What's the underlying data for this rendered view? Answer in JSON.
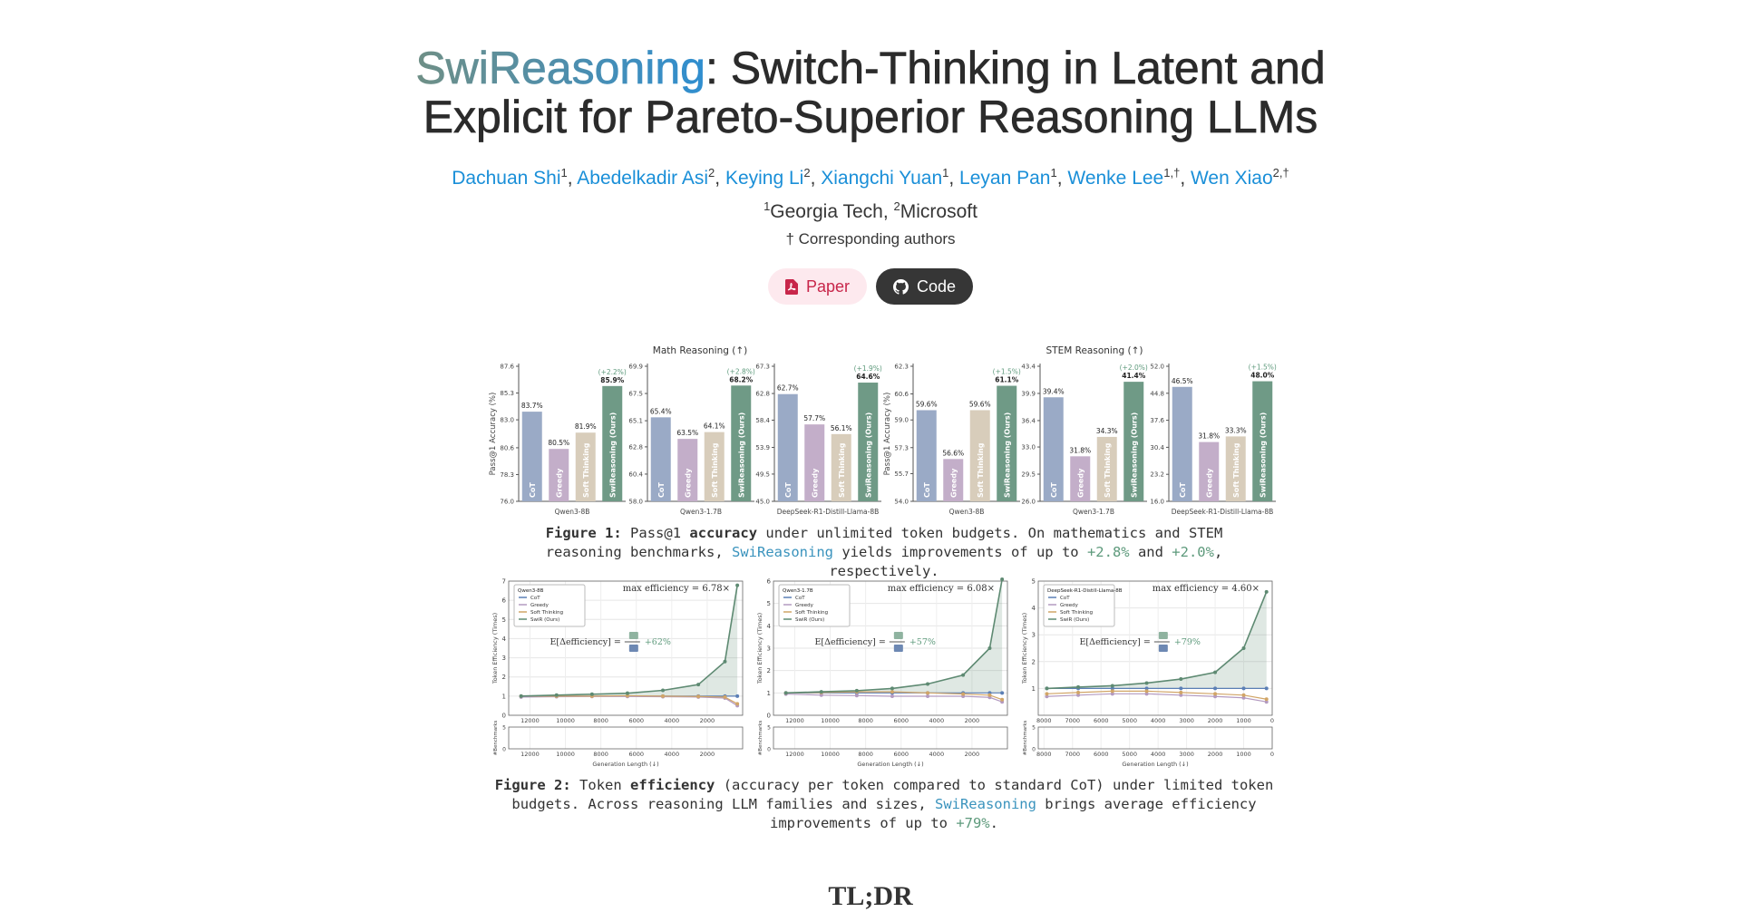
{
  "header": {
    "title_highlight": "SwiReasoning",
    "title_line1_rest": ": Switch-Thinking in Latent and",
    "title_line2": "Explicit for Pareto-Superior Reasoning LLMs",
    "authors": [
      {
        "name": "Dachuan Shi",
        "sup": "1"
      },
      {
        "name": "Abedelkadir Asi",
        "sup": "2"
      },
      {
        "name": "Keying Li",
        "sup": "2"
      },
      {
        "name": "Xiangchi Yuan",
        "sup": "1"
      },
      {
        "name": "Leyan Pan",
        "sup": "1"
      },
      {
        "name": "Wenke Lee",
        "sup": "1,†"
      },
      {
        "name": "Wen Xiao",
        "sup": "2,†"
      }
    ],
    "affiliations": [
      {
        "sup": "1",
        "name": "Georgia Tech"
      },
      {
        "sup": "2",
        "name": "Microsoft"
      }
    ],
    "note": "† Corresponding authors",
    "buttons": [
      "Paper",
      "Code"
    ]
  },
  "figure1": {
    "groups": [
      "Math Reasoning (↑)",
      "STEM Reasoning (↑)"
    ],
    "ylabel": "Pass@1 Accuracy (%)",
    "bar_names": [
      "CoT",
      "Greedy",
      "Soft Thinking",
      "SwiReasoning (Ours)"
    ],
    "colors": [
      "#9aaac6",
      "#c3aec9",
      "#d8cdbb",
      "#6f9a86"
    ],
    "panels": [
      {
        "type": "bar",
        "model": "Qwen3-8B",
        "ylim": [
          76,
          87.6
        ],
        "yticks": [
          {
            "value": 76,
            "label": "76.0"
          },
          78.3,
          80.6,
          {
            "value": 83,
            "label": "83.0"
          },
          85.3,
          87.6
        ],
        "values": [
          83.7,
          80.5,
          81.9,
          85.9
        ],
        "value_labels": [
          "83.7%",
          "80.5%",
          "81.9%",
          "85.9%"
        ],
        "gain": "(+2.2%)"
      },
      {
        "type": "bar",
        "model": "Qwen3-1.7B",
        "ylim": [
          58,
          69.9
        ],
        "yticks": [
          {
            "value": 58,
            "label": "58.0"
          },
          60.4,
          62.8,
          65.1,
          67.5,
          69.9
        ],
        "values": [
          65.4,
          63.5,
          64.1,
          68.2
        ],
        "value_labels": [
          "65.4%",
          "63.5%",
          "64.1%",
          "68.2%"
        ],
        "gain": "(+2.8%)"
      },
      {
        "type": "bar",
        "model": "DeepSeek-R1-Distill-Llama-8B",
        "ylim": [
          45,
          67.3
        ],
        "yticks": [
          {
            "value": 45,
            "label": "45.0"
          },
          49.5,
          53.9,
          58.4,
          62.8,
          67.3
        ],
        "values": [
          62.7,
          57.7,
          56.1,
          64.6
        ],
        "value_labels": [
          "62.7%",
          "57.7%",
          "56.1%",
          "64.6%"
        ],
        "gain": "(+1.9%)"
      },
      {
        "type": "bar",
        "model": "Qwen3-8B",
        "ylim": [
          54,
          62.3
        ],
        "yticks": [
          {
            "value": 54,
            "label": "54.0"
          },
          55.7,
          57.3,
          {
            "value": 59,
            "label": "59.0"
          },
          60.6,
          62.3
        ],
        "values": [
          59.6,
          56.6,
          59.6,
          61.1
        ],
        "value_labels": [
          "59.6%",
          "56.6%",
          "59.6%",
          "61.1%"
        ],
        "gain": "(+1.5%)"
      },
      {
        "type": "bar",
        "model": "Qwen3-1.7B",
        "ylim": [
          26,
          43.4
        ],
        "yticks": [
          {
            "value": 26,
            "label": "26.0"
          },
          29.5,
          {
            "value": 33,
            "label": "33.0"
          },
          36.4,
          39.9,
          43.4
        ],
        "values": [
          39.4,
          31.8,
          34.3,
          41.4
        ],
        "value_labels": [
          "39.4%",
          "31.8%",
          "34.3%",
          "41.4%"
        ],
        "gain": "(+2.0%)"
      },
      {
        "type": "bar",
        "model": "DeepSeek-R1-Distill-Llama-8B",
        "ylim": [
          16,
          52
        ],
        "yticks": [
          {
            "value": 16,
            "label": "16.0"
          },
          23.2,
          30.4,
          37.6,
          44.8,
          {
            "value": 52,
            "label": "52.0"
          }
        ],
        "values": [
          46.5,
          31.8,
          33.3,
          48.0
        ],
        "value_labels": [
          "46.5%",
          "31.8%",
          "33.3%",
          "48.0%"
        ],
        "gain": "(+1.5%)"
      }
    ],
    "caption": [
      "Figure 1:",
      " Pass@1 ",
      "accuracy",
      " under unlimited token budgets. On mathematics and STEM reasoning benchmarks, ",
      "SwiReasoning",
      " yields improvements of up to ",
      "+2.8%",
      " and ",
      "+2.0%",
      ", respectively."
    ]
  },
  "figure2": {
    "ylabel": "Token Efficiency (Times)",
    "xlabel": "Generation Length (↓)",
    "bench_ylabel": "#Benchmarks",
    "bench_yticks": [
      0,
      5
    ],
    "formula": "E[Δefficiency] =",
    "panels": [
      {
        "type": "line",
        "model": "Qwen3-8B",
        "max_label": "max efficiency = 6.78×",
        "mean_gain": "+62%",
        "xlim": [
          13200,
          0
        ],
        "xticks": [
          12000,
          10000,
          8000,
          6000,
          4000,
          2000
        ],
        "ylim": [
          0,
          7
        ],
        "yticks": [
          0,
          1,
          2,
          3,
          4,
          5,
          6,
          7
        ],
        "x": [
          12500,
          10500,
          8500,
          6500,
          4500,
          2500,
          1000,
          300
        ],
        "series": [
          {
            "name": "CoT",
            "color": "#5b7fb5",
            "values": [
              1,
              1,
              1,
              1,
              1,
              1,
              1,
              1
            ]
          },
          {
            "name": "Greedy",
            "color": "#b39ac0",
            "values": [
              0.95,
              0.97,
              0.98,
              0.98,
              0.97,
              0.95,
              0.9,
              0.5
            ]
          },
          {
            "name": "Soft Thinking",
            "color": "#d1a567",
            "values": [
              1,
              1,
              1,
              1.02,
              1,
              0.98,
              0.95,
              0.6
            ]
          },
          {
            "name": "SwiR (Ours)",
            "color": "#5e8a72",
            "values": [
              1,
              1.05,
              1.1,
              1.15,
              1.3,
              1.6,
              2.8,
              6.78
            ]
          }
        ]
      },
      {
        "type": "line",
        "model": "Qwen3-1.7B",
        "max_label": "max efficiency = 6.08×",
        "mean_gain": "+57%",
        "xlim": [
          13200,
          0
        ],
        "xticks": [
          12000,
          10000,
          8000,
          6000,
          4000,
          2000
        ],
        "ylim": [
          0,
          6
        ],
        "yticks": [
          0,
          1,
          2,
          3,
          4,
          5,
          6
        ],
        "x": [
          12500,
          10500,
          8500,
          6500,
          4500,
          2500,
          1000,
          300
        ],
        "series": [
          {
            "name": "CoT",
            "color": "#5b7fb5",
            "values": [
              1,
              1,
              1,
              1,
              1,
              1,
              1,
              1
            ]
          },
          {
            "name": "Greedy",
            "color": "#b39ac0",
            "values": [
              0.95,
              0.9,
              0.88,
              0.85,
              0.85,
              0.85,
              0.8,
              0.6
            ]
          },
          {
            "name": "Soft Thinking",
            "color": "#d1a567",
            "values": [
              1,
              1.02,
              1.05,
              1.05,
              1,
              0.95,
              0.9,
              0.7
            ]
          },
          {
            "name": "SwiR (Ours)",
            "color": "#5e8a72",
            "values": [
              1,
              1.05,
              1.1,
              1.2,
              1.4,
              1.8,
              3.0,
              6.08
            ]
          }
        ]
      },
      {
        "type": "line",
        "model": "DeepSeek-R1-Distill-Llama-8B",
        "max_label": "max efficiency = 4.60×",
        "mean_gain": "+79%",
        "xlim": [
          8200,
          0
        ],
        "xticks": [
          8000,
          7000,
          6000,
          5000,
          4000,
          3000,
          2000,
          1000,
          0
        ],
        "ylim": [
          0,
          5
        ],
        "yticks": [
          1,
          2,
          3,
          4,
          5
        ],
        "x": [
          7900,
          6800,
          5600,
          4400,
          3200,
          2000,
          1000,
          200
        ],
        "series": [
          {
            "name": "CoT",
            "color": "#5b7fb5",
            "values": [
              1,
              1,
              1,
              1,
              1,
              1,
              1,
              1
            ]
          },
          {
            "name": "Greedy",
            "color": "#b39ac0",
            "values": [
              0.7,
              0.75,
              0.8,
              0.8,
              0.75,
              0.7,
              0.65,
              0.5
            ]
          },
          {
            "name": "Soft Thinking",
            "color": "#d1a567",
            "values": [
              0.8,
              0.85,
              0.9,
              0.9,
              0.85,
              0.8,
              0.75,
              0.6
            ]
          },
          {
            "name": "SwiR (Ours)",
            "color": "#5e8a72",
            "values": [
              1,
              1.05,
              1.1,
              1.2,
              1.35,
              1.6,
              2.5,
              4.6
            ]
          }
        ]
      }
    ],
    "caption": [
      "Figure 2:",
      " Token ",
      "efficiency",
      " (accuracy per token compared to standard CoT) under limited token budgets. Across reasoning LLM families and sizes, ",
      "SwiReasoning",
      " brings average efficiency improvements of up to ",
      "+79%",
      "."
    ]
  },
  "tldr": "TL;DR"
}
